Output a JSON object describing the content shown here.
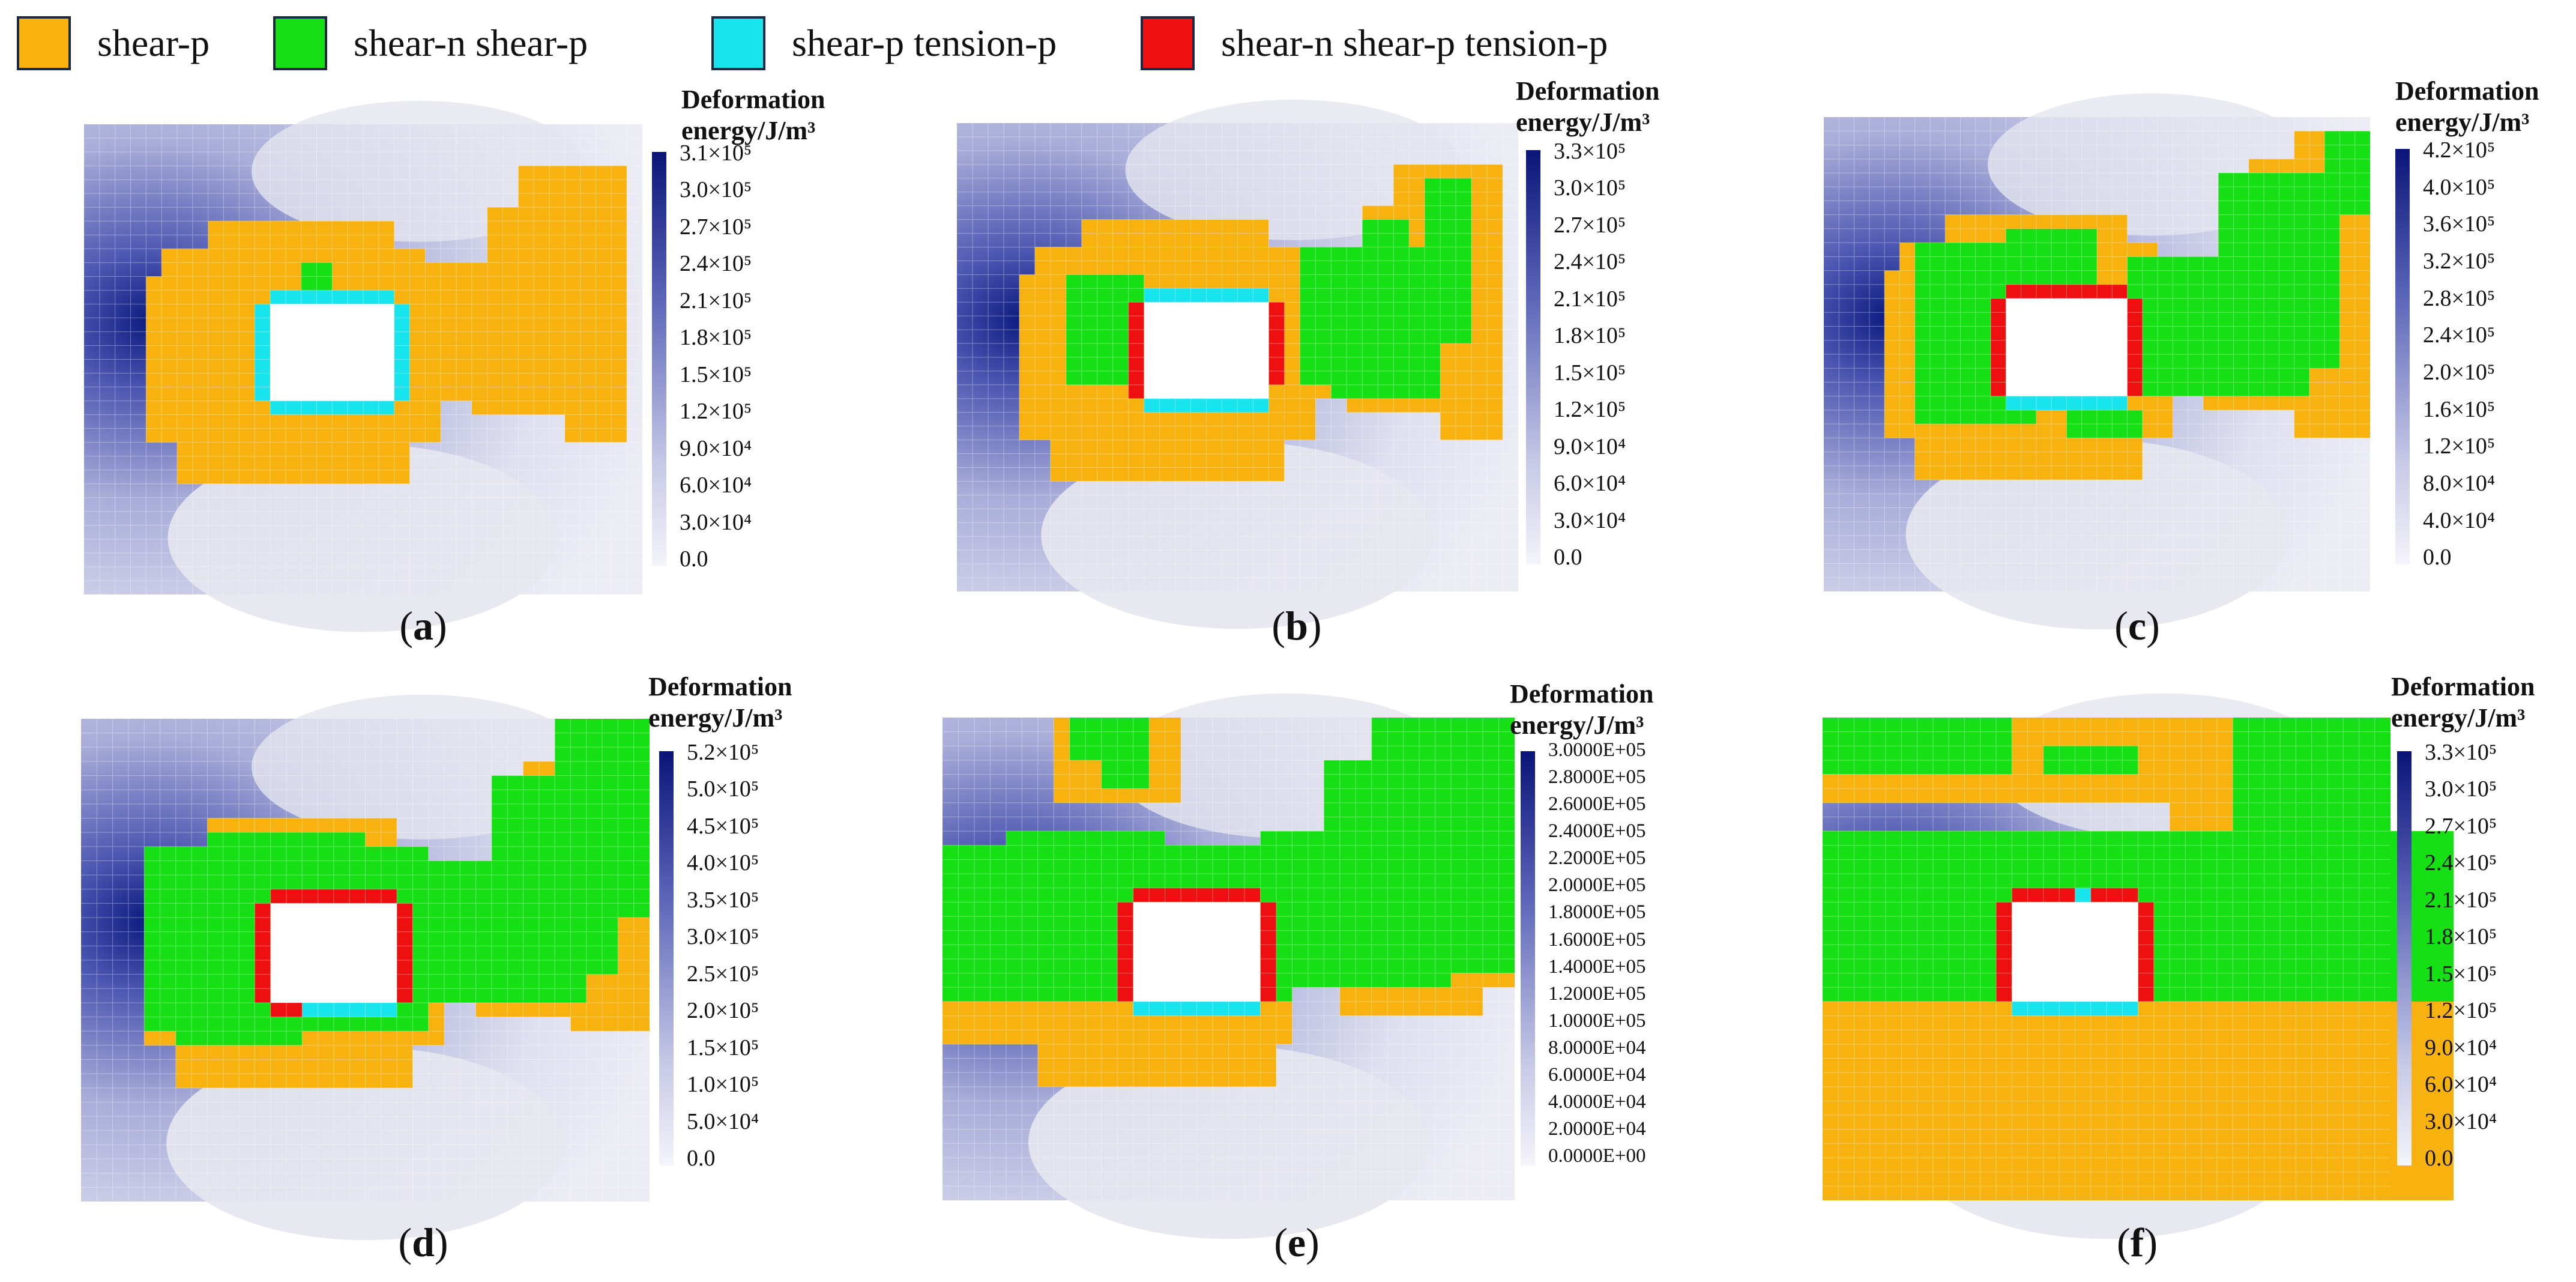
{
  "legend": {
    "items": [
      {
        "label": "shear-p",
        "color": "#f7b20f"
      },
      {
        "label": "shear-n  shear-p",
        "color": "#14e014"
      },
      {
        "label": "shear-p  tension-p",
        "color": "#18e4ee"
      },
      {
        "label": "shear-n  shear-p  tension-p",
        "color": "#ee1010"
      }
    ]
  },
  "colorbar": {
    "title_line1": "Deformation",
    "title_line2": "energy/J/m³"
  },
  "panels": [
    {
      "id": "a",
      "caption": "a",
      "ticks": [
        "3.1×10⁵",
        "3.0×10⁵",
        "2.7×10⁵",
        "2.4×10⁵",
        "2.1×10⁵",
        "1.8×10⁵",
        "1.5×10⁵",
        "1.2×10⁵",
        "9.0×10⁴",
        "6.0×10⁴",
        "3.0×10⁴",
        "0.0"
      ]
    },
    {
      "id": "b",
      "caption": "b",
      "ticks": [
        "3.3×10⁵",
        "3.0×10⁵",
        "2.7×10⁵",
        "2.4×10⁵",
        "2.1×10⁵",
        "1.8×10⁵",
        "1.5×10⁵",
        "1.2×10⁵",
        "9.0×10⁴",
        "6.0×10⁴",
        "3.0×10⁴",
        "0.0"
      ]
    },
    {
      "id": "c",
      "caption": "c",
      "ticks": [
        "4.2×10⁵",
        "4.0×10⁵",
        "3.6×10⁵",
        "3.2×10⁵",
        "2.8×10⁵",
        "2.4×10⁵",
        "2.0×10⁵",
        "1.6×10⁵",
        "1.2×10⁵",
        "8.0×10⁴",
        "4.0×10⁴",
        "0.0"
      ]
    },
    {
      "id": "d",
      "caption": "d",
      "ticks": [
        "5.2×10⁵",
        "5.0×10⁵",
        "4.5×10⁵",
        "4.0×10⁵",
        "3.5×10⁵",
        "3.0×10⁵",
        "2.5×10⁵",
        "2.0×10⁵",
        "1.5×10⁵",
        "1.0×10⁵",
        "5.0×10⁴",
        "0.0"
      ]
    },
    {
      "id": "e",
      "caption": "e",
      "ticks": [
        "3.0000E+05",
        "2.8000E+05",
        "2.6000E+05",
        "2.4000E+05",
        "2.2000E+05",
        "2.0000E+05",
        "1.8000E+05",
        "1.6000E+05",
        "1.4000E+05",
        "1.2000E+05",
        "1.0000E+05",
        "8.0000E+04",
        "6.0000E+04",
        "4.0000E+04",
        "2.0000E+04",
        "0.0000E+00"
      ]
    },
    {
      "id": "f",
      "caption": "f",
      "ticks": [
        "3.3×10⁵",
        "3.0×10⁵",
        "2.7×10⁵",
        "2.4×10⁵",
        "2.1×10⁵",
        "1.8×10⁵",
        "1.5×10⁵",
        "1.2×10⁵",
        "9.0×10⁴",
        "6.0×10⁴",
        "3.0×10⁴",
        "0.0"
      ]
    }
  ]
}
